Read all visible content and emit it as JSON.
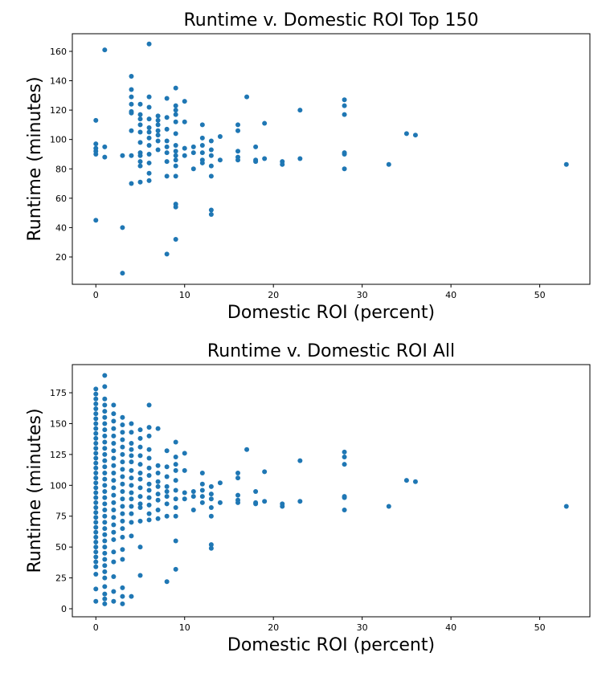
{
  "chart_data": [
    {
      "type": "scatter",
      "title": "Runtime v. Domestic ROI Top 150",
      "x_label": "Domestic ROI (percent)",
      "y_label": "Runtime (minutes)",
      "color": "#1f77b4",
      "xlim": [
        -2.65,
        55.65
      ],
      "ylim": [
        1.4,
        172
      ],
      "xticks": [
        0,
        10,
        20,
        30,
        40,
        50
      ],
      "yticks": [
        20,
        40,
        60,
        80,
        100,
        120,
        140,
        160
      ],
      "x": [
        0,
        0,
        0,
        0,
        0,
        0,
        1,
        1,
        1,
        3,
        3,
        3,
        4,
        4,
        4,
        4,
        4,
        4,
        4,
        4,
        4,
        5,
        5,
        5,
        5,
        5,
        5,
        5,
        5,
        5,
        5,
        5,
        6,
        6,
        6,
        6,
        6,
        6,
        6,
        6,
        6,
        6,
        6,
        6,
        7,
        7,
        7,
        7,
        7,
        7,
        7,
        8,
        8,
        8,
        8,
        8,
        8,
        8,
        8,
        8,
        9,
        9,
        9,
        9,
        9,
        9,
        9,
        9,
        9,
        9,
        9,
        9,
        9,
        9,
        9,
        10,
        10,
        10,
        10,
        11,
        11,
        11,
        12,
        12,
        12,
        12,
        12,
        12,
        13,
        13,
        13,
        13,
        13,
        13,
        13,
        14,
        14,
        16,
        16,
        16,
        16,
        16,
        17,
        18,
        18,
        18,
        19,
        19,
        21,
        21,
        23,
        23,
        28,
        28,
        28,
        28,
        28,
        28,
        33,
        35,
        36,
        53
      ],
      "y": [
        113,
        97,
        94,
        92,
        90,
        45,
        161,
        95,
        88,
        89,
        40,
        9,
        143,
        134,
        129,
        124,
        119,
        118,
        106,
        89,
        70,
        124,
        117,
        114,
        110,
        105,
        98,
        91,
        89,
        85,
        82,
        71,
        165,
        129,
        122,
        114,
        108,
        105,
        101,
        96,
        90,
        84,
        77,
        72,
        116,
        113,
        110,
        106,
        103,
        99,
        93,
        128,
        115,
        107,
        99,
        95,
        91,
        85,
        75,
        22,
        135,
        123,
        120,
        117,
        112,
        104,
        96,
        92,
        89,
        86,
        82,
        75,
        56,
        54,
        32,
        126,
        112,
        94,
        89,
        95,
        91,
        80,
        110,
        101,
        96,
        91,
        86,
        84,
        99,
        93,
        89,
        82,
        75,
        52,
        49,
        102,
        86,
        110,
        106,
        92,
        88,
        86,
        129,
        95,
        86,
        85,
        111,
        87,
        85,
        83,
        120,
        87,
        127,
        123,
        117,
        91,
        90,
        80,
        83,
        104,
        103,
        83
      ]
    },
    {
      "type": "scatter",
      "title": "Runtime v. Domestic ROI All",
      "x_label": "Domestic ROI (percent)",
      "y_label": "Runtime (minutes)",
      "color": "#1f77b4",
      "xlim": [
        -2.65,
        55.65
      ],
      "ylim": [
        -6.5,
        197.8
      ],
      "xticks": [
        0,
        10,
        20,
        30,
        40,
        50
      ],
      "yticks": [
        0,
        25,
        50,
        75,
        100,
        125,
        150,
        175
      ],
      "x": [
        0,
        0,
        0,
        0,
        0,
        0,
        0,
        0,
        0,
        0,
        0,
        0,
        0,
        0,
        0,
        0,
        0,
        0,
        0,
        0,
        0,
        0,
        0,
        0,
        0,
        0,
        0,
        0,
        0,
        0,
        0,
        0,
        0,
        0,
        0,
        0,
        0,
        0,
        0,
        0,
        1,
        1,
        1,
        1,
        1,
        1,
        1,
        1,
        1,
        1,
        1,
        1,
        1,
        1,
        1,
        1,
        1,
        1,
        1,
        1,
        1,
        1,
        1,
        1,
        1,
        1,
        1,
        1,
        1,
        1,
        1,
        1,
        1,
        1,
        1,
        1,
        2,
        2,
        2,
        2,
        2,
        2,
        2,
        2,
        2,
        2,
        2,
        2,
        2,
        2,
        2,
        2,
        2,
        2,
        2,
        2,
        2,
        2,
        2,
        2,
        3,
        3,
        3,
        3,
        3,
        3,
        3,
        3,
        3,
        3,
        3,
        3,
        3,
        3,
        3,
        3,
        3,
        3,
        3,
        3,
        3,
        3,
        4,
        4,
        4,
        4,
        4,
        4,
        4,
        4,
        4,
        4,
        4,
        4,
        4,
        4,
        4,
        4,
        5,
        5,
        5,
        5,
        5,
        5,
        5,
        5,
        5,
        5,
        5,
        5,
        5,
        5,
        6,
        6,
        6,
        6,
        6,
        6,
        6,
        6,
        6,
        6,
        6,
        6,
        6,
        7,
        7,
        7,
        7,
        7,
        7,
        7,
        7,
        7,
        8,
        8,
        8,
        8,
        8,
        8,
        8,
        8,
        8,
        9,
        9,
        9,
        9,
        9,
        9,
        9,
        9,
        9,
        9,
        9,
        10,
        10,
        10,
        10,
        11,
        11,
        11,
        12,
        12,
        12,
        12,
        12,
        13,
        13,
        13,
        13,
        13,
        13,
        13,
        14,
        14,
        16,
        16,
        16,
        16,
        16,
        17,
        18,
        18,
        18,
        19,
        19,
        21,
        21,
        23,
        23,
        28,
        28,
        28,
        28,
        28,
        28,
        33,
        35,
        36,
        53
      ],
      "y": [
        178,
        174,
        170,
        166,
        162,
        158,
        154,
        150,
        146,
        142,
        138,
        134,
        130,
        126,
        122,
        118,
        114,
        110,
        106,
        102,
        98,
        94,
        90,
        86,
        82,
        78,
        74,
        70,
        66,
        62,
        58,
        54,
        50,
        46,
        42,
        38,
        34,
        28,
        16,
        6,
        189,
        180,
        170,
        165,
        160,
        155,
        150,
        145,
        140,
        135,
        130,
        125,
        120,
        115,
        110,
        105,
        100,
        95,
        90,
        85,
        80,
        75,
        70,
        65,
        60,
        55,
        50,
        45,
        40,
        35,
        30,
        25,
        18,
        12,
        8,
        4,
        165,
        158,
        152,
        146,
        140,
        134,
        128,
        122,
        116,
        110,
        104,
        98,
        92,
        86,
        80,
        74,
        68,
        62,
        56,
        46,
        38,
        26,
        14,
        6,
        155,
        149,
        143,
        137,
        131,
        125,
        119,
        113,
        107,
        101,
        95,
        89,
        83,
        77,
        71,
        65,
        58,
        48,
        40,
        17,
        10,
        4,
        150,
        143,
        134,
        129,
        124,
        119,
        112,
        106,
        100,
        94,
        89,
        83,
        77,
        70,
        59,
        10,
        145,
        138,
        131,
        124,
        117,
        110,
        105,
        98,
        91,
        85,
        82,
        71,
        50,
        27,
        165,
        147,
        140,
        129,
        122,
        114,
        108,
        101,
        96,
        90,
        84,
        77,
        72,
        146,
        116,
        110,
        103,
        99,
        93,
        88,
        80,
        73,
        128,
        115,
        107,
        99,
        95,
        91,
        85,
        75,
        22,
        135,
        123,
        117,
        112,
        104,
        96,
        89,
        82,
        75,
        55,
        32,
        126,
        112,
        94,
        89,
        95,
        91,
        80,
        110,
        101,
        96,
        91,
        86,
        99,
        93,
        89,
        82,
        75,
        52,
        49,
        102,
        86,
        110,
        106,
        92,
        88,
        86,
        129,
        95,
        86,
        85,
        111,
        87,
        85,
        83,
        120,
        87,
        127,
        123,
        117,
        91,
        90,
        80,
        83,
        104,
        103,
        83
      ]
    }
  ]
}
